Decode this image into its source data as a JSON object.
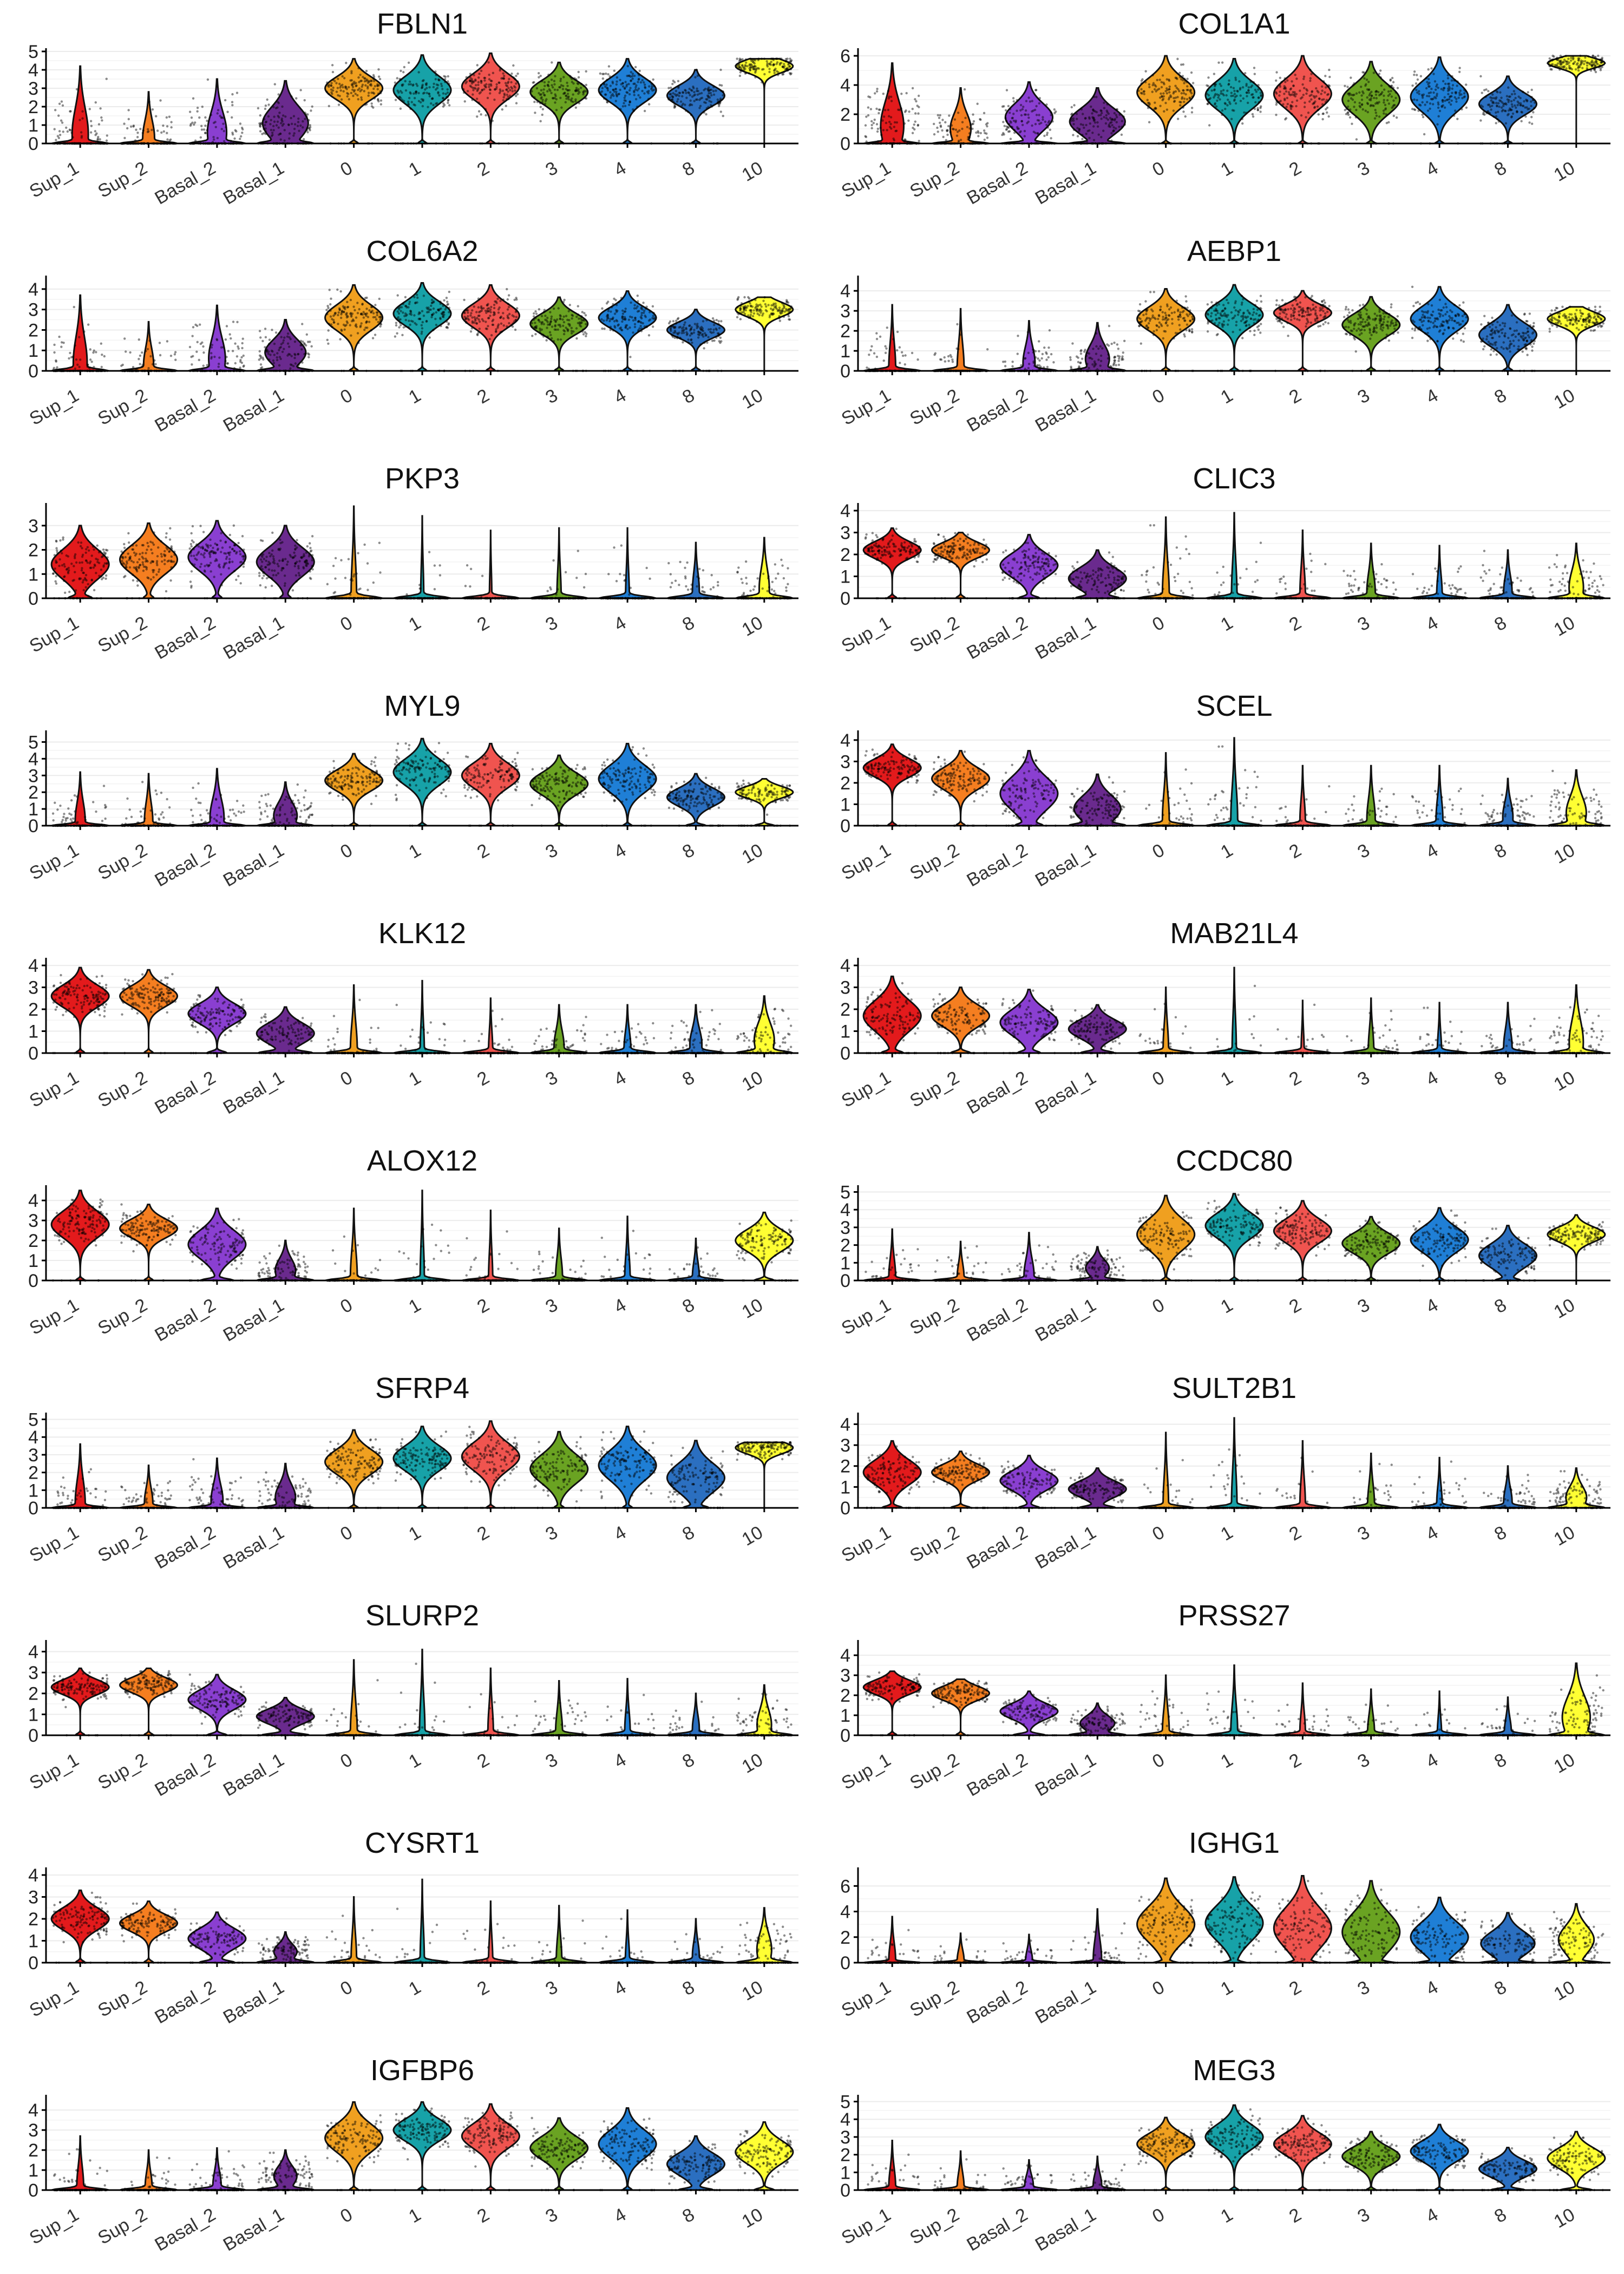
{
  "palette": {
    "Sup_1": "#e31a1c",
    "Sup_2": "#f57e20",
    "Basal_2": "#8a3fd1",
    "Basal_1": "#6a2a8e",
    "0": "#f0a020",
    "1": "#17a2a8",
    "2": "#f0544f",
    "3": "#6aa322",
    "4": "#1f7fd6",
    "8": "#2b6fc0",
    "10": "#ffff33"
  },
  "chart_data": [
    {
      "type": "violin",
      "title": "FBLN1",
      "categories": [
        "Sup_1",
        "Sup_2",
        "Basal_2",
        "Basal_1",
        "0",
        "1",
        "2",
        "3",
        "4",
        "8",
        "10"
      ],
      "yticks": [
        0,
        1,
        2,
        3,
        4,
        5
      ],
      "ylim": [
        0,
        5
      ],
      "medians": [
        0.5,
        0.3,
        0.6,
        1.1,
        3.0,
        2.9,
        3.1,
        2.8,
        2.9,
        2.6,
        4.2
      ],
      "pct_expressing": [
        0.55,
        0.45,
        0.6,
        0.8,
        0.95,
        0.95,
        0.95,
        0.95,
        0.95,
        0.95,
        1.0
      ],
      "max_values": [
        4.2,
        2.8,
        3.5,
        3.4,
        4.6,
        4.8,
        4.9,
        4.4,
        4.6,
        4.0,
        4.6
      ]
    },
    {
      "type": "violin",
      "title": "COL1A1",
      "categories": [
        "Sup_1",
        "Sup_2",
        "Basal_2",
        "Basal_1",
        "0",
        "1",
        "2",
        "3",
        "4",
        "8",
        "10"
      ],
      "yticks": [
        0,
        2,
        4,
        6
      ],
      "ylim": [
        0,
        6.3
      ],
      "medians": [
        1.2,
        1.0,
        1.8,
        1.5,
        3.5,
        3.3,
        3.4,
        3.0,
        3.2,
        2.7,
        5.5
      ],
      "pct_expressing": [
        0.65,
        0.6,
        0.75,
        0.8,
        0.95,
        0.95,
        0.95,
        0.95,
        0.95,
        0.95,
        1.0
      ],
      "max_values": [
        5.5,
        3.8,
        4.2,
        3.8,
        6.0,
        5.8,
        6.0,
        5.6,
        5.9,
        4.6,
        6.0
      ]
    },
    {
      "type": "violin",
      "title": "COL6A2",
      "categories": [
        "Sup_1",
        "Sup_2",
        "Basal_2",
        "Basal_1",
        "0",
        "1",
        "2",
        "3",
        "4",
        "8",
        "10"
      ],
      "yticks": [
        0,
        1,
        2,
        3,
        4
      ],
      "ylim": [
        0,
        4.5
      ],
      "medians": [
        0.4,
        0.3,
        0.6,
        0.9,
        2.6,
        2.8,
        2.7,
        2.3,
        2.6,
        2.0,
        3.0
      ],
      "pct_expressing": [
        0.5,
        0.4,
        0.55,
        0.75,
        0.95,
        0.95,
        0.95,
        0.95,
        0.95,
        0.95,
        1.0
      ],
      "max_values": [
        3.7,
        2.4,
        3.2,
        2.5,
        4.2,
        4.3,
        4.2,
        3.6,
        3.9,
        3.0,
        3.6
      ]
    },
    {
      "type": "violin",
      "title": "AEBP1",
      "categories": [
        "Sup_1",
        "Sup_2",
        "Basal_2",
        "Basal_1",
        "0",
        "1",
        "2",
        "3",
        "4",
        "8",
        "10"
      ],
      "yticks": [
        0,
        1,
        2,
        3,
        4
      ],
      "ylim": [
        0,
        4.6
      ],
      "medians": [
        0.2,
        0.2,
        0.4,
        0.6,
        2.6,
        2.8,
        2.9,
        2.3,
        2.6,
        1.8,
        2.6
      ],
      "pct_expressing": [
        0.3,
        0.3,
        0.45,
        0.65,
        0.95,
        0.95,
        0.95,
        0.95,
        0.95,
        0.95,
        1.0
      ],
      "max_values": [
        3.3,
        3.1,
        2.5,
        2.4,
        4.1,
        4.3,
        4.0,
        3.7,
        4.2,
        3.3,
        3.2
      ]
    },
    {
      "type": "violin",
      "title": "PKP3",
      "categories": [
        "Sup_1",
        "Sup_2",
        "Basal_2",
        "Basal_1",
        "0",
        "1",
        "2",
        "3",
        "4",
        "8",
        "10"
      ],
      "yticks": [
        0,
        1,
        2,
        3
      ],
      "ylim": [
        0,
        3.8
      ],
      "medians": [
        1.4,
        1.6,
        1.7,
        1.5,
        0.2,
        0.1,
        0.1,
        0.1,
        0.1,
        0.3,
        0.4
      ],
      "pct_expressing": [
        0.9,
        0.95,
        0.95,
        0.95,
        0.25,
        0.15,
        0.12,
        0.2,
        0.18,
        0.3,
        0.4
      ],
      "max_values": [
        3.0,
        3.1,
        3.2,
        3.0,
        3.8,
        3.4,
        2.8,
        2.9,
        2.9,
        2.3,
        2.5
      ]
    },
    {
      "type": "violin",
      "title": "CLIC3",
      "categories": [
        "Sup_1",
        "Sup_2",
        "Basal_2",
        "Basal_1",
        "0",
        "1",
        "2",
        "3",
        "4",
        "8",
        "10"
      ],
      "yticks": [
        0,
        1,
        2,
        3,
        4
      ],
      "ylim": [
        0,
        4.2
      ],
      "medians": [
        2.2,
        2.2,
        1.5,
        0.9,
        0.2,
        0.2,
        0.2,
        0.3,
        0.2,
        0.3,
        0.5
      ],
      "pct_expressing": [
        0.95,
        0.95,
        0.9,
        0.85,
        0.3,
        0.25,
        0.25,
        0.35,
        0.25,
        0.35,
        0.5
      ],
      "max_values": [
        3.2,
        3.0,
        2.9,
        2.2,
        3.7,
        3.9,
        3.1,
        2.5,
        2.4,
        2.2,
        2.5
      ]
    },
    {
      "type": "violin",
      "title": "MYL9",
      "categories": [
        "Sup_1",
        "Sup_2",
        "Basal_2",
        "Basal_1",
        "0",
        "1",
        "2",
        "3",
        "4",
        "8",
        "10"
      ],
      "yticks": [
        0,
        1,
        2,
        3,
        4,
        5
      ],
      "ylim": [
        0,
        5.5
      ],
      "medians": [
        0.3,
        0.3,
        0.5,
        0.6,
        2.7,
        3.2,
        3.0,
        2.5,
        2.8,
        1.7,
        2.0
      ],
      "pct_expressing": [
        0.4,
        0.35,
        0.5,
        0.65,
        0.95,
        0.95,
        0.95,
        0.95,
        0.95,
        0.9,
        0.9
      ],
      "max_values": [
        3.2,
        3.1,
        3.4,
        2.6,
        4.3,
        5.2,
        4.9,
        4.2,
        4.9,
        3.1,
        2.8
      ]
    },
    {
      "type": "violin",
      "title": "SCEL",
      "categories": [
        "Sup_1",
        "Sup_2",
        "Basal_2",
        "Basal_1",
        "0",
        "1",
        "2",
        "3",
        "4",
        "8",
        "10"
      ],
      "yticks": [
        0,
        1,
        2,
        3,
        4
      ],
      "ylim": [
        0,
        4.3
      ],
      "medians": [
        2.7,
        2.2,
        1.5,
        0.8,
        0.3,
        0.3,
        0.2,
        0.3,
        0.3,
        0.4,
        0.6
      ],
      "pct_expressing": [
        0.95,
        0.95,
        0.9,
        0.8,
        0.3,
        0.3,
        0.25,
        0.35,
        0.3,
        0.4,
        0.6
      ],
      "max_values": [
        3.8,
        3.5,
        3.5,
        2.4,
        3.4,
        4.1,
        2.8,
        2.8,
        2.8,
        2.2,
        2.6
      ]
    },
    {
      "type": "violin",
      "title": "KLK12",
      "categories": [
        "Sup_1",
        "Sup_2",
        "Basal_2",
        "Basal_1",
        "0",
        "1",
        "2",
        "3",
        "4",
        "8",
        "10"
      ],
      "yticks": [
        0,
        1,
        2,
        3,
        4
      ],
      "ylim": [
        0,
        4.2
      ],
      "medians": [
        2.6,
        2.6,
        1.8,
        0.9,
        0.2,
        0.1,
        0.1,
        0.3,
        0.2,
        0.4,
        0.6
      ],
      "pct_expressing": [
        0.95,
        0.95,
        0.9,
        0.8,
        0.3,
        0.2,
        0.2,
        0.4,
        0.3,
        0.45,
        0.6
      ],
      "max_values": [
        3.9,
        3.8,
        3.0,
        2.1,
        3.1,
        3.3,
        2.5,
        2.2,
        2.2,
        2.2,
        2.6
      ]
    },
    {
      "type": "violin",
      "title": "MAB21L4",
      "categories": [
        "Sup_1",
        "Sup_2",
        "Basal_2",
        "Basal_1",
        "0",
        "1",
        "2",
        "3",
        "4",
        "8",
        "10"
      ],
      "yticks": [
        0,
        1,
        2,
        3,
        4
      ],
      "ylim": [
        0,
        4.2
      ],
      "medians": [
        1.7,
        1.7,
        1.4,
        1.1,
        0.2,
        0.2,
        0.1,
        0.2,
        0.1,
        0.3,
        0.5
      ],
      "pct_expressing": [
        0.9,
        0.9,
        0.9,
        0.85,
        0.25,
        0.2,
        0.15,
        0.25,
        0.2,
        0.35,
        0.5
      ],
      "max_values": [
        3.5,
        3.0,
        2.9,
        2.2,
        3.0,
        3.9,
        2.4,
        2.5,
        2.3,
        2.3,
        3.1
      ]
    },
    {
      "type": "violin",
      "title": "ALOX12",
      "categories": [
        "Sup_1",
        "Sup_2",
        "Basal_2",
        "Basal_1",
        "0",
        "1",
        "2",
        "3",
        "4",
        "8",
        "10"
      ],
      "yticks": [
        0,
        1,
        2,
        3,
        4
      ],
      "ylim": [
        0,
        4.6
      ],
      "medians": [
        2.8,
        2.6,
        1.8,
        0.5,
        0.2,
        0.1,
        0.1,
        0.2,
        0.1,
        0.2,
        2.0
      ],
      "pct_expressing": [
        0.95,
        0.95,
        0.85,
        0.6,
        0.3,
        0.2,
        0.2,
        0.3,
        0.25,
        0.3,
        0.9
      ],
      "max_values": [
        4.5,
        3.8,
        3.6,
        2.0,
        3.6,
        4.5,
        3.5,
        2.6,
        3.2,
        2.1,
        3.4
      ]
    },
    {
      "type": "violin",
      "title": "CCDC80",
      "categories": [
        "Sup_1",
        "Sup_2",
        "Basal_2",
        "Basal_1",
        "0",
        "1",
        "2",
        "3",
        "4",
        "8",
        "10"
      ],
      "yticks": [
        0,
        1,
        2,
        3,
        4,
        5
      ],
      "ylim": [
        0,
        5.2
      ],
      "medians": [
        0.2,
        0.2,
        0.3,
        0.7,
        2.6,
        3.1,
        2.8,
        2.1,
        2.3,
        1.4,
        2.6
      ],
      "pct_expressing": [
        0.3,
        0.3,
        0.4,
        0.6,
        0.95,
        0.95,
        0.95,
        0.95,
        0.95,
        0.9,
        1.0
      ],
      "max_values": [
        2.9,
        2.2,
        2.7,
        1.9,
        4.8,
        4.9,
        4.5,
        3.6,
        4.1,
        3.1,
        3.7
      ]
    },
    {
      "type": "violin",
      "title": "SFRP4",
      "categories": [
        "Sup_1",
        "Sup_2",
        "Basal_2",
        "Basal_1",
        "0",
        "1",
        "2",
        "3",
        "4",
        "8",
        "10"
      ],
      "yticks": [
        0,
        1,
        2,
        3,
        4,
        5
      ],
      "ylim": [
        0,
        5.2
      ],
      "medians": [
        0.3,
        0.3,
        0.4,
        0.6,
        2.6,
        2.8,
        2.9,
        2.2,
        2.4,
        1.7,
        3.4
      ],
      "pct_expressing": [
        0.4,
        0.35,
        0.45,
        0.6,
        0.95,
        0.95,
        0.95,
        0.95,
        0.95,
        0.9,
        1.0
      ],
      "max_values": [
        3.6,
        2.4,
        2.8,
        2.5,
        4.4,
        4.6,
        4.9,
        4.3,
        4.6,
        3.8,
        3.7
      ]
    },
    {
      "type": "violin",
      "title": "SULT2B1",
      "categories": [
        "Sup_1",
        "Sup_2",
        "Basal_2",
        "Basal_1",
        "0",
        "1",
        "2",
        "3",
        "4",
        "8",
        "10"
      ],
      "yticks": [
        0,
        1,
        2,
        3,
        4
      ],
      "ylim": [
        0,
        4.4
      ],
      "medians": [
        1.7,
        1.7,
        1.3,
        0.9,
        0.2,
        0.2,
        0.2,
        0.2,
        0.2,
        0.3,
        0.5
      ],
      "pct_expressing": [
        0.9,
        0.9,
        0.9,
        0.85,
        0.25,
        0.25,
        0.25,
        0.3,
        0.25,
        0.35,
        0.6
      ],
      "max_values": [
        3.2,
        2.7,
        2.5,
        1.9,
        3.6,
        4.3,
        3.2,
        2.6,
        2.4,
        2.0,
        1.9
      ]
    },
    {
      "type": "violin",
      "title": "SLURP2",
      "categories": [
        "Sup_1",
        "Sup_2",
        "Basal_2",
        "Basal_1",
        "0",
        "1",
        "2",
        "3",
        "4",
        "8",
        "10"
      ],
      "yticks": [
        0,
        1,
        2,
        3,
        4
      ],
      "ylim": [
        0,
        4.4
      ],
      "medians": [
        2.3,
        2.4,
        1.7,
        0.9,
        0.2,
        0.2,
        0.2,
        0.2,
        0.2,
        0.3,
        0.5
      ],
      "pct_expressing": [
        0.95,
        0.95,
        0.9,
        0.8,
        0.3,
        0.25,
        0.25,
        0.3,
        0.25,
        0.3,
        0.5
      ],
      "max_values": [
        3.2,
        3.2,
        2.9,
        1.8,
        3.6,
        4.1,
        3.2,
        2.6,
        2.7,
        2.0,
        2.4
      ]
    },
    {
      "type": "violin",
      "title": "PRSS27",
      "categories": [
        "Sup_1",
        "Sup_2",
        "Basal_2",
        "Basal_1",
        "0",
        "1",
        "2",
        "3",
        "4",
        "8",
        "10"
      ],
      "yticks": [
        0,
        1,
        2,
        3,
        4
      ],
      "ylim": [
        0,
        4.6
      ],
      "medians": [
        2.4,
        2.1,
        1.2,
        0.6,
        0.2,
        0.2,
        0.2,
        0.2,
        0.1,
        0.2,
        0.9
      ],
      "pct_expressing": [
        0.95,
        0.95,
        0.85,
        0.7,
        0.3,
        0.3,
        0.25,
        0.3,
        0.2,
        0.3,
        0.7
      ],
      "max_values": [
        3.2,
        2.8,
        2.2,
        1.6,
        3.0,
        3.5,
        2.6,
        2.3,
        2.2,
        1.9,
        3.6
      ]
    },
    {
      "type": "violin",
      "title": "CYSRT1",
      "categories": [
        "Sup_1",
        "Sup_2",
        "Basal_2",
        "Basal_1",
        "0",
        "1",
        "2",
        "3",
        "4",
        "8",
        "10"
      ],
      "yticks": [
        0,
        1,
        2,
        3,
        4
      ],
      "ylim": [
        0,
        4.2
      ],
      "medians": [
        2.0,
        1.8,
        1.1,
        0.5,
        0.2,
        0.1,
        0.1,
        0.2,
        0.1,
        0.3,
        0.6
      ],
      "pct_expressing": [
        0.95,
        0.95,
        0.85,
        0.6,
        0.25,
        0.2,
        0.2,
        0.25,
        0.2,
        0.3,
        0.5
      ],
      "max_values": [
        3.3,
        2.8,
        2.3,
        1.4,
        3.0,
        3.8,
        2.8,
        2.6,
        2.4,
        2.0,
        2.5
      ]
    },
    {
      "type": "violin",
      "title": "IGHG1",
      "categories": [
        "Sup_1",
        "Sup_2",
        "Basal_2",
        "Basal_1",
        "0",
        "1",
        "2",
        "3",
        "4",
        "8",
        "10"
      ],
      "yticks": [
        0,
        2,
        4,
        6
      ],
      "ylim": [
        0,
        7.2
      ],
      "medians": [
        0.2,
        0.2,
        0.2,
        0.3,
        3.0,
        3.1,
        2.7,
        2.4,
        2.0,
        1.5,
        1.8
      ],
      "pct_expressing": [
        0.3,
        0.3,
        0.3,
        0.35,
        0.9,
        0.9,
        0.9,
        0.85,
        0.85,
        0.8,
        0.7
      ],
      "max_values": [
        3.6,
        2.3,
        2.2,
        4.2,
        6.6,
        6.7,
        6.8,
        6.4,
        5.1,
        3.9,
        4.6
      ]
    },
    {
      "type": "violin",
      "title": "IGFBP6",
      "categories": [
        "Sup_1",
        "Sup_2",
        "Basal_2",
        "Basal_1",
        "0",
        "1",
        "2",
        "3",
        "4",
        "8",
        "10"
      ],
      "yticks": [
        0,
        1,
        2,
        3,
        4
      ],
      "ylim": [
        0,
        4.6
      ],
      "medians": [
        0.2,
        0.2,
        0.2,
        0.7,
        2.6,
        3.0,
        2.7,
        2.1,
        2.3,
        1.3,
        1.9
      ],
      "pct_expressing": [
        0.3,
        0.3,
        0.35,
        0.6,
        0.95,
        0.95,
        0.95,
        0.95,
        0.95,
        0.85,
        0.9
      ],
      "max_values": [
        2.7,
        2.0,
        2.1,
        2.0,
        4.4,
        4.4,
        4.3,
        3.6,
        4.1,
        2.7,
        3.4
      ]
    },
    {
      "type": "violin",
      "title": "MEG3",
      "categories": [
        "Sup_1",
        "Sup_2",
        "Basal_2",
        "Basal_1",
        "0",
        "1",
        "2",
        "3",
        "4",
        "8",
        "10"
      ],
      "yticks": [
        0,
        1,
        2,
        3,
        4,
        5
      ],
      "ylim": [
        0,
        5.2
      ],
      "medians": [
        0.2,
        0.2,
        0.3,
        0.3,
        2.6,
        3.0,
        2.6,
        1.9,
        2.2,
        1.2,
        1.8
      ],
      "pct_expressing": [
        0.3,
        0.3,
        0.35,
        0.35,
        0.95,
        0.95,
        0.95,
        0.95,
        0.95,
        0.85,
        0.85
      ],
      "max_values": [
        2.8,
        2.2,
        1.7,
        1.9,
        4.1,
        4.8,
        4.2,
        3.3,
        3.7,
        2.4,
        3.3
      ]
    }
  ]
}
